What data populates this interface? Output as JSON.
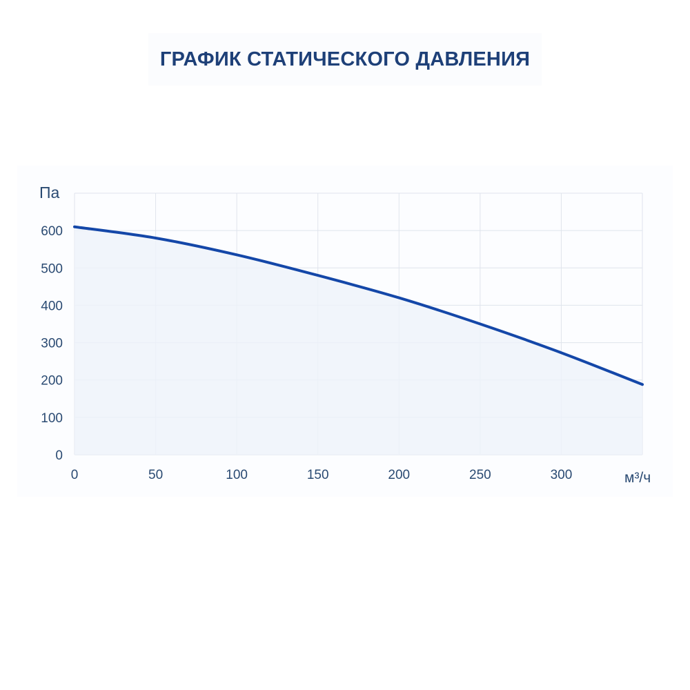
{
  "chart_data": {
    "type": "area",
    "title": "ГРАФИК СТАТИЧЕСКОГО ДАВЛЕНИЯ",
    "ylabel": "Па",
    "xlabel": "м³/ч",
    "xlim": [
      0,
      350
    ],
    "ylim": [
      0,
      700
    ],
    "x_ticks": [
      0,
      50,
      100,
      150,
      200,
      250,
      300
    ],
    "y_ticks": [
      0,
      100,
      200,
      300,
      400,
      500,
      600
    ],
    "grid": true,
    "series": [
      {
        "x": [
          0,
          50,
          100,
          150,
          200,
          250,
          300,
          350
        ],
        "y": [
          610,
          580,
          535,
          480,
          420,
          350,
          273,
          188
        ]
      }
    ],
    "colors": {
      "line": "#1447a8",
      "fill": "#eef2fa",
      "grid": "#dfe4ec",
      "axis_text": "#2a4a72",
      "title": "#1e4078"
    }
  }
}
